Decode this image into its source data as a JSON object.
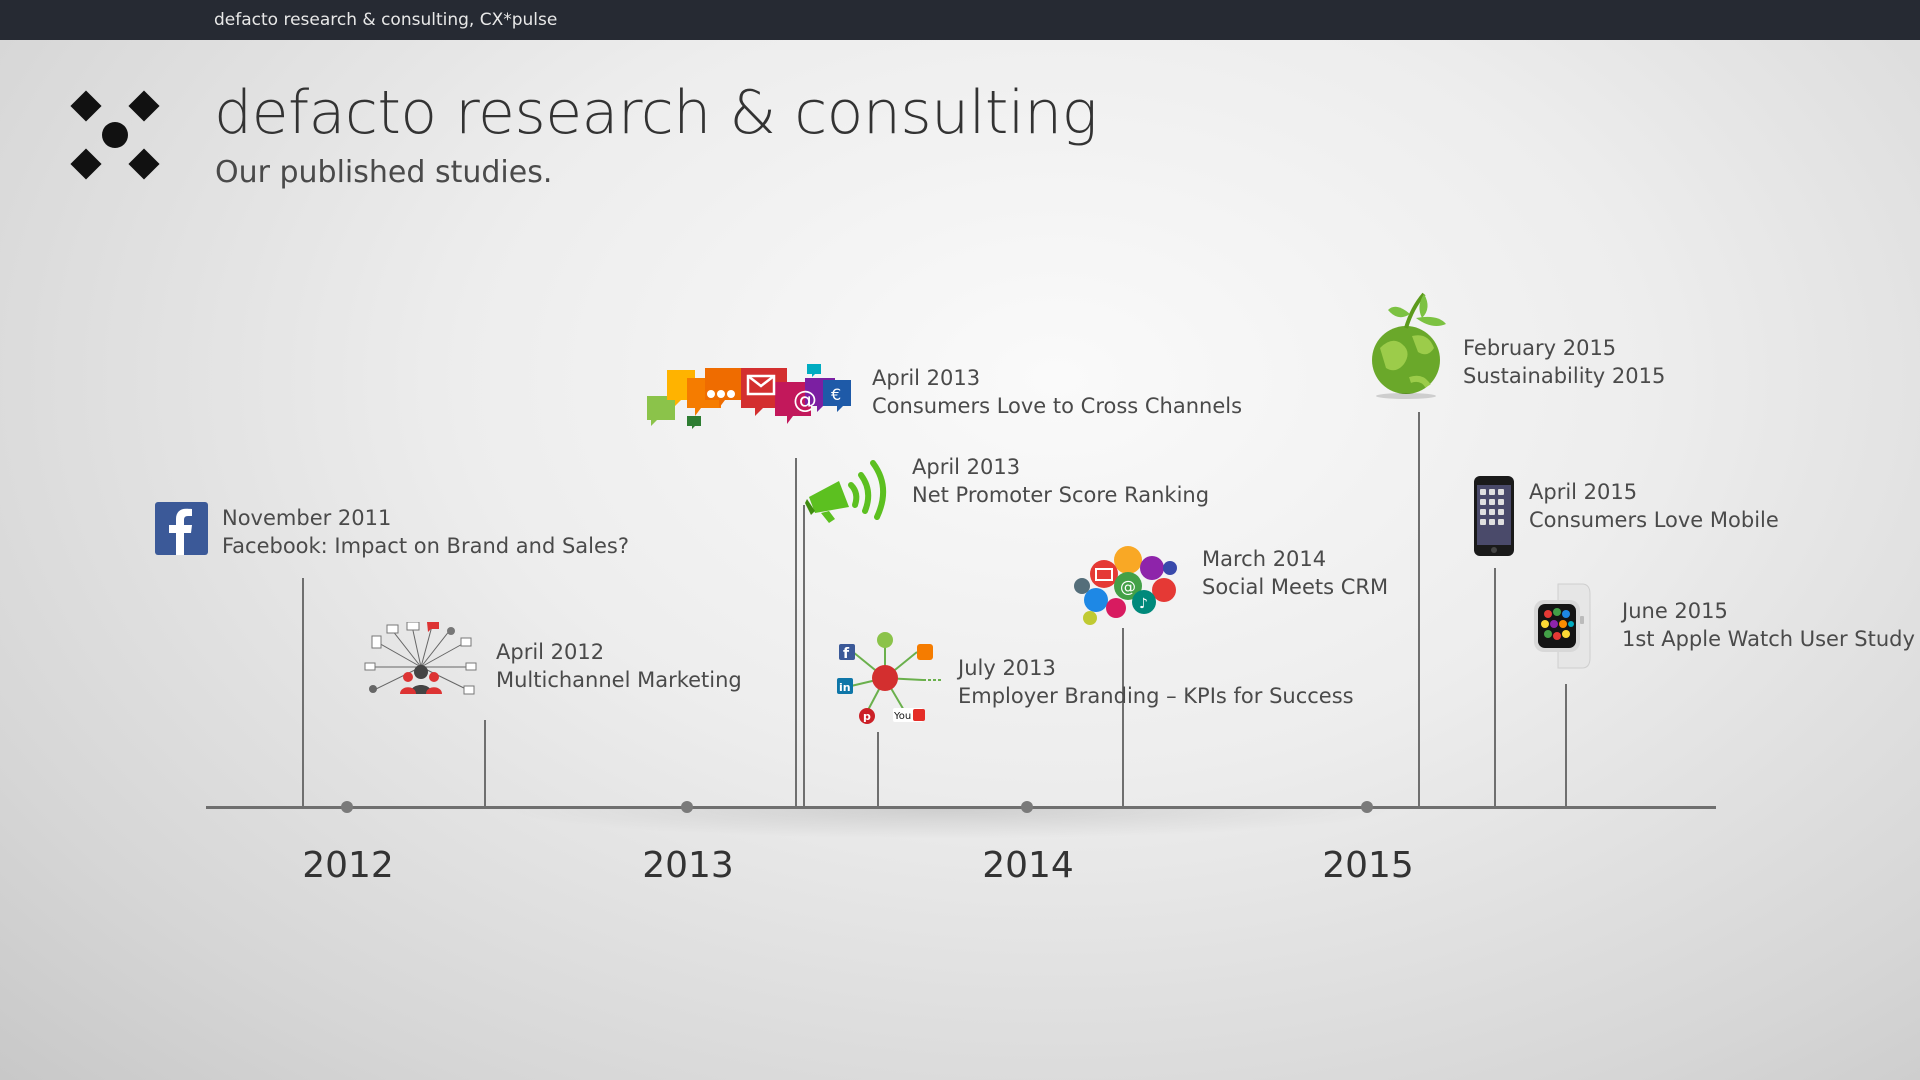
{
  "topbar": {
    "text": "defacto research & consulting, CX*pulse"
  },
  "header": {
    "title": "defacto research & consulting",
    "subtitle": "Our published studies."
  },
  "timeline": {
    "years": [
      "2012",
      "2013",
      "2014",
      "2015"
    ],
    "events": [
      {
        "date": "November 2011",
        "title": "Facebook: Impact on Brand and Sales?",
        "icon": "facebook-icon"
      },
      {
        "date": "April 2012",
        "title": "Multichannel Marketing",
        "icon": "multichannel-network-icon"
      },
      {
        "date": "April 2013",
        "title": "Consumers Love to Cross Channels",
        "icon": "speech-bubbles-icon"
      },
      {
        "date": "April 2013",
        "title": "Net Promoter Score Ranking",
        "icon": "megaphone-icon"
      },
      {
        "date": "July 2013",
        "title": "Employer Branding – KPIs for Success",
        "icon": "social-network-icon"
      },
      {
        "date": "March 2014",
        "title": "Social Meets CRM",
        "icon": "social-media-cloud-icon"
      },
      {
        "date": "February 2015",
        "title": "Sustainability 2015",
        "icon": "green-globe-icon"
      },
      {
        "date": "April 2015",
        "title": "Consumers Love Mobile",
        "icon": "smartphone-icon"
      },
      {
        "date": "June 2015",
        "title": "1st Apple Watch User Study",
        "icon": "smartwatch-icon"
      }
    ]
  },
  "colors": {
    "topbar": "#262a33",
    "axis": "#6f6f6f",
    "facebook": "#3b5998",
    "megaphone": "#5cc020",
    "globe": "#6aa82a"
  }
}
